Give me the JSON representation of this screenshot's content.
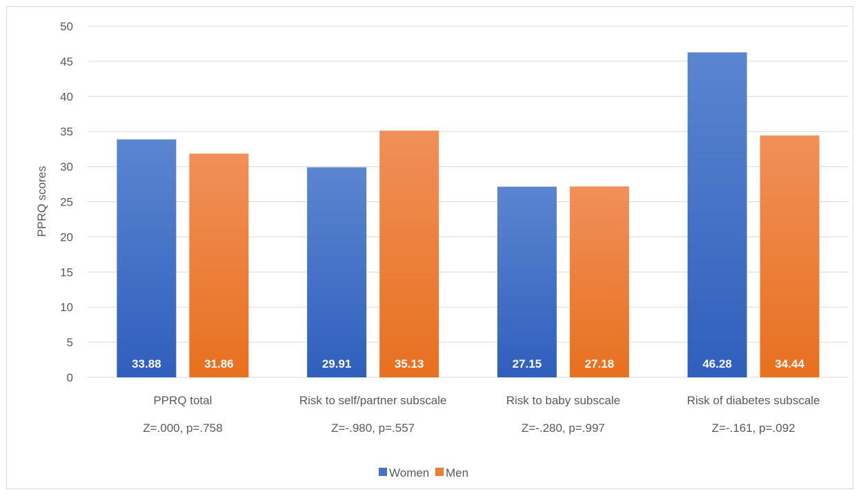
{
  "chart_data": {
    "type": "bar",
    "title": "",
    "xlabel": "",
    "ylabel": "PPRQ scores",
    "ylim": [
      0,
      50
    ],
    "ytick_step": 5,
    "grid": true,
    "legend_position": "bottom",
    "categories": [
      "PPRQ total",
      "Risk to self/partner subscale",
      "Risk to baby subscale",
      "Risk of diabetes subscale"
    ],
    "category_stats": [
      "Z=.000, p=.758",
      "Z=-.980, p=.557",
      "Z=-.280, p=.997",
      "Z=-.161, p=.092"
    ],
    "series": [
      {
        "name": "Women",
        "values": [
          33.88,
          29.91,
          27.15,
          46.28
        ],
        "labels": [
          "33.88",
          "29.91",
          "27.15",
          "46.28"
        ],
        "color": "#4472c4",
        "color_top": "#5b85d0",
        "color_bottom": "#2f5fbd"
      },
      {
        "name": "Men",
        "values": [
          31.86,
          35.13,
          27.18,
          34.44
        ],
        "labels": [
          "31.86",
          "35.13",
          "27.18",
          "34.44"
        ],
        "color": "#ed7d31",
        "color_top": "#f09059",
        "color_bottom": "#e8701f"
      }
    ]
  }
}
